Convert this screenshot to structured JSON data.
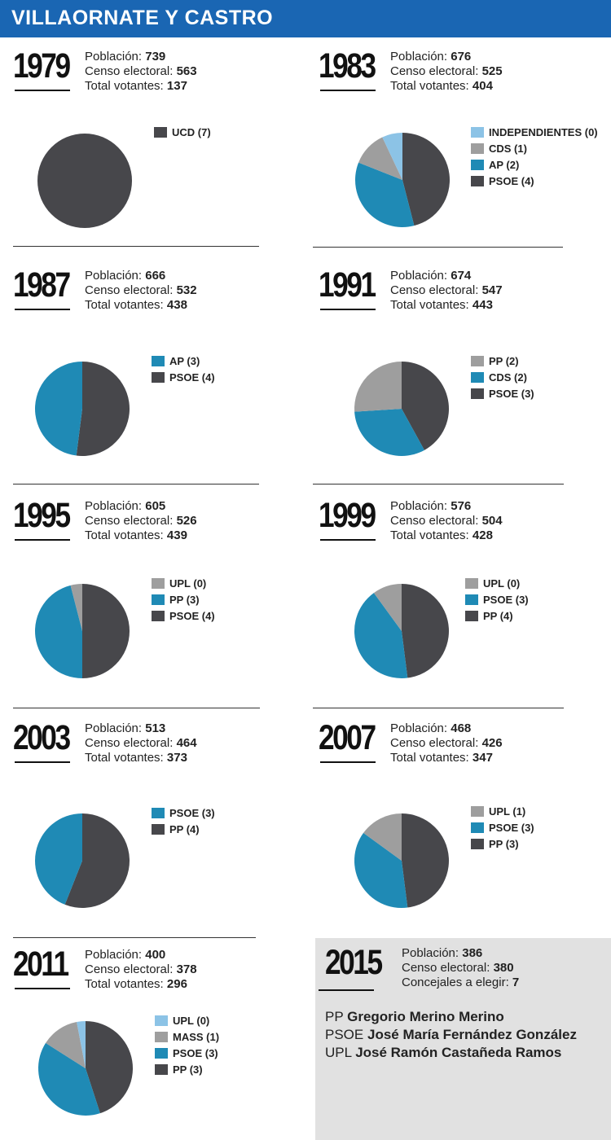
{
  "title": "VILLAORNATE Y CASTRO",
  "colors": {
    "header": "#1a66b3",
    "dark": "#47474b",
    "blue": "#1f8ab5",
    "gray": "#9e9e9e",
    "light_blue": "#8cc3e6",
    "panel": "#e1e1e1"
  },
  "chart_data": [
    {
      "type": "pie",
      "year": "1979",
      "stats": [
        {
          "label": "Población:",
          "value": "739"
        },
        {
          "label": "Censo electoral:",
          "value": "563"
        },
        {
          "label": "Total votantes:",
          "value": "137"
        }
      ],
      "slices": [
        {
          "label": "UCD (7)",
          "party": "UCD",
          "value": 7,
          "color": "#47474b"
        }
      ]
    },
    {
      "type": "pie",
      "year": "1983",
      "stats": [
        {
          "label": "Población:",
          "value": "676"
        },
        {
          "label": "Censo electoral:",
          "value": "525"
        },
        {
          "label": "Total votantes:",
          "value": "404"
        }
      ],
      "slices": [
        {
          "label": "INDEPENDIENTES (0)",
          "party": "INDEPENDIENTES",
          "value": 0,
          "share": 0.07,
          "color": "#8cc3e6"
        },
        {
          "label": "CDS (1)",
          "party": "CDS",
          "value": 1,
          "share": 0.12,
          "color": "#9e9e9e"
        },
        {
          "label": "AP (2)",
          "party": "AP",
          "value": 2,
          "share": 0.35,
          "color": "#1f8ab5"
        },
        {
          "label": "PSOE (4)",
          "party": "PSOE",
          "value": 4,
          "share": 0.46,
          "color": "#47474b"
        }
      ]
    },
    {
      "type": "pie",
      "year": "1987",
      "stats": [
        {
          "label": "Población:",
          "value": "666"
        },
        {
          "label": "Censo electoral:",
          "value": "532"
        },
        {
          "label": "Total votantes:",
          "value": "438"
        }
      ],
      "slices": [
        {
          "label": "AP (3)",
          "party": "AP",
          "value": 3,
          "share": 0.48,
          "color": "#1f8ab5"
        },
        {
          "label": "PSOE (4)",
          "party": "PSOE",
          "value": 4,
          "share": 0.52,
          "color": "#47474b"
        }
      ]
    },
    {
      "type": "pie",
      "year": "1991",
      "stats": [
        {
          "label": "Población:",
          "value": "674"
        },
        {
          "label": "Censo electoral:",
          "value": "547"
        },
        {
          "label": "Total votantes:",
          "value": "443"
        }
      ],
      "slices": [
        {
          "label": "PP (2)",
          "party": "PP",
          "value": 2,
          "share": 0.26,
          "color": "#9e9e9e"
        },
        {
          "label": "CDS (2)",
          "party": "CDS",
          "value": 2,
          "share": 0.32,
          "color": "#1f8ab5"
        },
        {
          "label": "PSOE (3)",
          "party": "PSOE",
          "value": 3,
          "share": 0.42,
          "color": "#47474b"
        }
      ]
    },
    {
      "type": "pie",
      "year": "1995",
      "stats": [
        {
          "label": "Población:",
          "value": "605"
        },
        {
          "label": "Censo electoral:",
          "value": "526"
        },
        {
          "label": "Total votantes:",
          "value": "439"
        }
      ],
      "slices": [
        {
          "label": "UPL (0)",
          "party": "UPL",
          "value": 0,
          "share": 0.04,
          "color": "#9e9e9e"
        },
        {
          "label": "PP (3)",
          "party": "PP",
          "value": 3,
          "share": 0.46,
          "color": "#1f8ab5"
        },
        {
          "label": "PSOE (4)",
          "party": "PSOE",
          "value": 4,
          "share": 0.5,
          "color": "#47474b"
        }
      ]
    },
    {
      "type": "pie",
      "year": "1999",
      "stats": [
        {
          "label": "Población:",
          "value": "576"
        },
        {
          "label": "Censo electoral:",
          "value": "504"
        },
        {
          "label": "Total votantes:",
          "value": "428"
        }
      ],
      "slices": [
        {
          "label": "UPL (0)",
          "party": "UPL",
          "value": 0,
          "share": 0.1,
          "color": "#9e9e9e"
        },
        {
          "label": "PSOE (3)",
          "party": "PSOE",
          "value": 3,
          "share": 0.42,
          "color": "#1f8ab5"
        },
        {
          "label": "PP (4)",
          "party": "PP",
          "value": 4,
          "share": 0.48,
          "color": "#47474b"
        }
      ]
    },
    {
      "type": "pie",
      "year": "2003",
      "stats": [
        {
          "label": "Población:",
          "value": "513"
        },
        {
          "label": "Censo electoral:",
          "value": "464"
        },
        {
          "label": "Total votantes:",
          "value": "373"
        }
      ],
      "slices": [
        {
          "label": "PSOE (3)",
          "party": "PSOE",
          "value": 3,
          "share": 0.44,
          "color": "#1f8ab5"
        },
        {
          "label": "PP (4)",
          "party": "PP",
          "value": 4,
          "share": 0.56,
          "color": "#47474b"
        }
      ]
    },
    {
      "type": "pie",
      "year": "2007",
      "stats": [
        {
          "label": "Población:",
          "value": "468"
        },
        {
          "label": "Censo electoral:",
          "value": "426"
        },
        {
          "label": "Total votantes:",
          "value": "347"
        }
      ],
      "slices": [
        {
          "label": "UPL (1)",
          "party": "UPL",
          "value": 1,
          "share": 0.15,
          "color": "#9e9e9e"
        },
        {
          "label": "PSOE (3)",
          "party": "PSOE",
          "value": 3,
          "share": 0.37,
          "color": "#1f8ab5"
        },
        {
          "label": "PP (3)",
          "party": "PP",
          "value": 3,
          "share": 0.48,
          "color": "#47474b"
        }
      ]
    },
    {
      "type": "pie",
      "year": "2011",
      "stats": [
        {
          "label": "Población:",
          "value": "400"
        },
        {
          "label": "Censo electoral:",
          "value": "378"
        },
        {
          "label": "Total votantes:",
          "value": "296"
        }
      ],
      "slices": [
        {
          "label": "UPL (0)",
          "party": "UPL",
          "value": 0,
          "share": 0.03,
          "color": "#8cc3e6"
        },
        {
          "label": "MASS (1)",
          "party": "MASS",
          "value": 1,
          "share": 0.13,
          "color": "#9e9e9e"
        },
        {
          "label": "PSOE (3)",
          "party": "PSOE",
          "value": 3,
          "share": 0.39,
          "color": "#1f8ab5"
        },
        {
          "label": "PP (3)",
          "party": "PP",
          "value": 3,
          "share": 0.45,
          "color": "#47474b"
        }
      ]
    }
  ],
  "election_2015": {
    "year": "2015",
    "stats": [
      {
        "label": "Población:",
        "value": "386"
      },
      {
        "label": "Censo electoral:",
        "value": "380"
      },
      {
        "label": "Concejales a elegir:",
        "value": "7"
      }
    ],
    "candidates": [
      {
        "party": "PP",
        "name": "Gregorio Merino Merino"
      },
      {
        "party": "PSOE",
        "name": "José María Fernández González"
      },
      {
        "party": "UPL",
        "name": "José Ramón Castañeda Ramos"
      }
    ]
  }
}
